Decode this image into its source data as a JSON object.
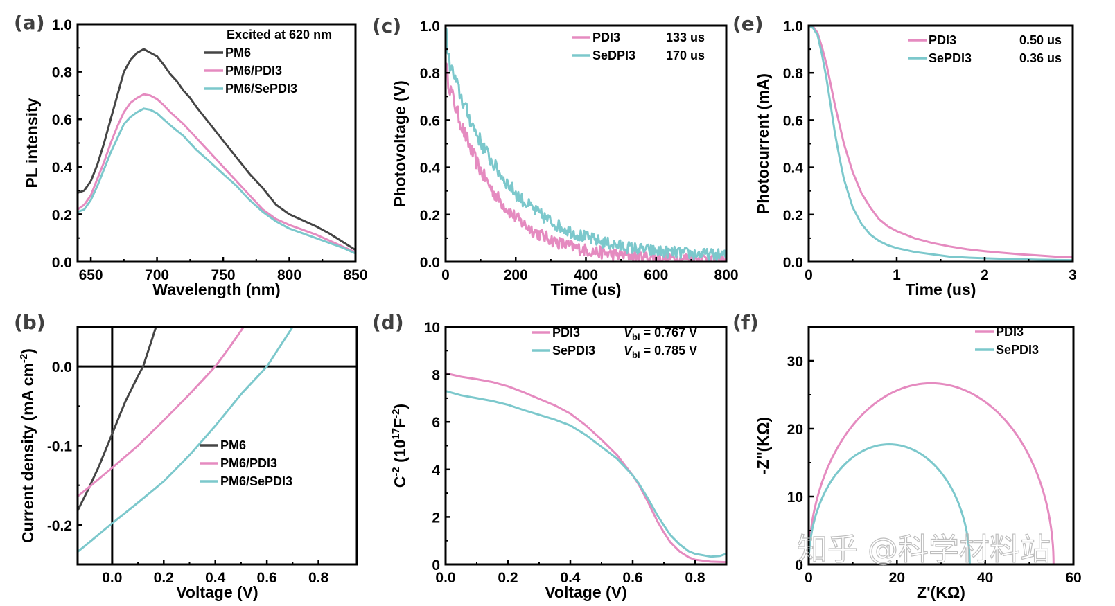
{
  "watermark": "知乎 @科学材料站",
  "colors": {
    "PM6": "#454545",
    "PDI3": "#E58BC0",
    "SePDI3": "#7CC8CC",
    "axis": "#000000"
  },
  "chart_data": [
    {
      "panel": "(a)",
      "type": "line",
      "title": "",
      "xlabel": "Wavelength (nm)",
      "ylabel": "PL intensity",
      "xlim": [
        640,
        850
      ],
      "ylim": [
        0.0,
        1.0
      ],
      "xticks": [
        650,
        700,
        750,
        800,
        850
      ],
      "yticks": [
        0.0,
        0.2,
        0.4,
        0.6,
        0.8,
        1.0
      ],
      "xtick_labels": [
        "650",
        "700",
        "750",
        "800",
        "850"
      ],
      "ytick_labels": [
        "0.0",
        "0.2",
        "0.4",
        "0.6",
        "0.8",
        "1.0"
      ],
      "legend_title": "Excited at 620 nm",
      "legend_position": "top-right",
      "series": [
        {
          "name": "PM6",
          "label": "PM6",
          "color_key": "PM6",
          "x": [
            640,
            645,
            650,
            655,
            660,
            665,
            670,
            675,
            680,
            685,
            690,
            695,
            700,
            705,
            710,
            715,
            720,
            725,
            730,
            740,
            750,
            760,
            770,
            780,
            790,
            800,
            810,
            820,
            830,
            840,
            850
          ],
          "y": [
            0.29,
            0.3,
            0.34,
            0.41,
            0.5,
            0.6,
            0.7,
            0.8,
            0.85,
            0.88,
            0.895,
            0.88,
            0.865,
            0.83,
            0.79,
            0.76,
            0.72,
            0.69,
            0.65,
            0.58,
            0.51,
            0.44,
            0.37,
            0.31,
            0.24,
            0.2,
            0.175,
            0.15,
            0.12,
            0.085,
            0.05
          ]
        },
        {
          "name": "PM6/PDI3",
          "label": "PM6/PDI3",
          "color_key": "PDI3",
          "x": [
            640,
            645,
            650,
            655,
            660,
            665,
            670,
            675,
            680,
            685,
            690,
            695,
            700,
            705,
            710,
            720,
            730,
            740,
            750,
            760,
            770,
            780,
            790,
            800,
            810,
            820,
            830,
            840,
            850
          ],
          "y": [
            0.22,
            0.24,
            0.28,
            0.35,
            0.42,
            0.5,
            0.57,
            0.63,
            0.67,
            0.69,
            0.705,
            0.7,
            0.685,
            0.66,
            0.63,
            0.58,
            0.52,
            0.46,
            0.4,
            0.34,
            0.28,
            0.22,
            0.18,
            0.155,
            0.135,
            0.115,
            0.09,
            0.065,
            0.04
          ]
        },
        {
          "name": "PM6/SePDI3",
          "label": "PM6/SePDI3",
          "color_key": "SePDI3",
          "x": [
            640,
            645,
            650,
            655,
            660,
            665,
            670,
            675,
            680,
            685,
            690,
            695,
            700,
            705,
            710,
            720,
            730,
            740,
            750,
            760,
            770,
            780,
            790,
            800,
            810,
            820,
            830,
            840,
            850
          ],
          "y": [
            0.21,
            0.22,
            0.26,
            0.32,
            0.39,
            0.46,
            0.52,
            0.58,
            0.61,
            0.63,
            0.645,
            0.64,
            0.625,
            0.6,
            0.575,
            0.53,
            0.47,
            0.42,
            0.37,
            0.32,
            0.26,
            0.21,
            0.17,
            0.14,
            0.12,
            0.1,
            0.08,
            0.06,
            0.035
          ]
        }
      ]
    },
    {
      "panel": "(b)",
      "type": "line",
      "title": "",
      "xlabel": "Voltage (V)",
      "ylabel": "Current density (mA cm-2)",
      "ylabel_main": "Current density (mA cm",
      "ylabel_sup": "-2",
      "ylabel_end": ")",
      "xlim": [
        -0.134,
        0.949
      ],
      "ylim": [
        -0.25,
        0.05
      ],
      "xticks": [
        0.0,
        0.2,
        0.4,
        0.6,
        0.8
      ],
      "yticks": [
        -0.2,
        -0.1,
        0.0
      ],
      "xtick_labels": [
        "0.0",
        "0.2",
        "0.4",
        "0.6",
        "0.8"
      ],
      "ytick_labels": [
        "-0.2",
        "-0.1",
        "0.0"
      ],
      "reference_lines": {
        "x": 0.0,
        "y": 0.0
      },
      "legend_position": "center-right",
      "series": [
        {
          "name": "PM6",
          "label": "PM6",
          "color_key": "PM6",
          "x": [
            -0.134,
            -0.1,
            -0.05,
            0.0,
            0.05,
            0.1,
            0.12,
            0.15,
            0.17
          ],
          "y": [
            -0.182,
            -0.16,
            -0.125,
            -0.085,
            -0.045,
            -0.012,
            0.0,
            0.03,
            0.05
          ]
        },
        {
          "name": "PM6/PDI3",
          "label": "PM6/PDI3",
          "color_key": "PDI3",
          "x": [
            -0.134,
            -0.1,
            0.0,
            0.1,
            0.2,
            0.3,
            0.4,
            0.45,
            0.51
          ],
          "y": [
            -0.164,
            -0.155,
            -0.128,
            -0.1,
            -0.068,
            -0.035,
            0.0,
            0.022,
            0.05
          ]
        },
        {
          "name": "PM6/SePDI3",
          "label": "PM6/SePDI3",
          "color_key": "SePDI3",
          "x": [
            -0.134,
            -0.1,
            0.0,
            0.1,
            0.2,
            0.3,
            0.4,
            0.5,
            0.6,
            0.65,
            0.7
          ],
          "y": [
            -0.234,
            -0.225,
            -0.198,
            -0.172,
            -0.145,
            -0.112,
            -0.075,
            -0.035,
            0.0,
            0.025,
            0.05
          ]
        }
      ]
    },
    {
      "panel": "(c)",
      "type": "line",
      "title": "",
      "xlabel": "Time (us)",
      "ylabel": "Photovoltage (V)",
      "xlim": [
        0,
        800
      ],
      "ylim": [
        0.0,
        1.0
      ],
      "xticks": [
        0,
        200,
        400,
        600,
        800
      ],
      "yticks": [
        0.0,
        0.2,
        0.4,
        0.6,
        0.8,
        1.0
      ],
      "xtick_labels": [
        "0",
        "200",
        "400",
        "600",
        "800"
      ],
      "ytick_labels": [
        "0.0",
        "0.2",
        "0.4",
        "0.6",
        "0.8",
        "1.0"
      ],
      "legend_position": "top-right",
      "noisy": true,
      "series": [
        {
          "name": "PDI3",
          "label": "PDI3",
          "annotation": "133 us",
          "color_key": "PDI3",
          "tau": 133,
          "amp": 0.8,
          "offset": 0.01
        },
        {
          "name": "SeDPI3",
          "label": "SeDPI3",
          "annotation": "170 us",
          "color_key": "SePDI3",
          "tau": 170,
          "amp": 0.88,
          "offset": 0.02
        }
      ]
    },
    {
      "panel": "(d)",
      "type": "line",
      "title": "",
      "xlabel": "Voltage (V)",
      "ylabel": "C-2 (10^17 F-2)",
      "ylabel_parts": [
        "C",
        "-2",
        " (10",
        "17",
        "F",
        "-2",
        ")"
      ],
      "xlim": [
        0.0,
        0.9
      ],
      "ylim": [
        0,
        10
      ],
      "xticks": [
        0.0,
        0.2,
        0.4,
        0.6,
        0.8
      ],
      "yticks": [
        0,
        2,
        4,
        6,
        8,
        10
      ],
      "xtick_labels": [
        "0.0",
        "0.2",
        "0.4",
        "0.6",
        "0.8"
      ],
      "ytick_labels": [
        "0",
        "2",
        "4",
        "6",
        "8",
        "10"
      ],
      "legend_position": "top-right",
      "series": [
        {
          "name": "PDI3",
          "label": "PDI3",
          "vbi_label": "V",
          "vbi_sub": "bi",
          "vbi_value": " = 0.767 V",
          "color_key": "PDI3",
          "x": [
            0.0,
            0.05,
            0.1,
            0.15,
            0.2,
            0.25,
            0.3,
            0.35,
            0.4,
            0.45,
            0.5,
            0.55,
            0.6,
            0.62,
            0.65,
            0.68,
            0.7,
            0.72,
            0.75,
            0.78,
            0.8,
            0.85,
            0.9
          ],
          "y": [
            8.05,
            7.9,
            7.8,
            7.68,
            7.5,
            7.25,
            6.97,
            6.7,
            6.35,
            5.85,
            5.25,
            4.6,
            3.75,
            3.35,
            2.6,
            1.8,
            1.35,
            0.95,
            0.55,
            0.3,
            0.2,
            0.12,
            0.1
          ]
        },
        {
          "name": "SePDI3",
          "label": "SePDI3",
          "vbi_label": "V",
          "vbi_sub": "bi",
          "vbi_value": " = 0.785 V",
          "color_key": "SePDI3",
          "x": [
            0.0,
            0.05,
            0.1,
            0.15,
            0.2,
            0.25,
            0.3,
            0.35,
            0.4,
            0.45,
            0.5,
            0.55,
            0.6,
            0.62,
            0.65,
            0.68,
            0.7,
            0.72,
            0.75,
            0.78,
            0.8,
            0.85,
            0.88,
            0.9
          ],
          "y": [
            7.3,
            7.12,
            7.0,
            6.88,
            6.72,
            6.5,
            6.3,
            6.1,
            5.85,
            5.45,
            4.95,
            4.45,
            3.75,
            3.4,
            2.75,
            2.05,
            1.65,
            1.25,
            0.85,
            0.55,
            0.45,
            0.33,
            0.36,
            0.45
          ]
        }
      ]
    },
    {
      "panel": "(e)",
      "type": "line",
      "title": "",
      "xlabel": "Time (us)",
      "ylabel": "Photocurrent (mA)",
      "xlim": [
        0,
        3
      ],
      "ylim": [
        0.0,
        1.0
      ],
      "xticks": [
        0,
        1,
        2,
        3
      ],
      "yticks": [
        0.0,
        0.2,
        0.4,
        0.6,
        0.8,
        1.0
      ],
      "xtick_labels": [
        "0",
        "1",
        "2",
        "3"
      ],
      "ytick_labels": [
        "0.0",
        "0.2",
        "0.4",
        "0.6",
        "0.8",
        "1.0"
      ],
      "legend_position": "top-right",
      "series": [
        {
          "name": "PDI3",
          "label": "PDI3",
          "annotation": "0.50 us",
          "color_key": "PDI3",
          "x": [
            0,
            0.05,
            0.1,
            0.15,
            0.2,
            0.25,
            0.3,
            0.35,
            0.4,
            0.5,
            0.6,
            0.7,
            0.8,
            0.9,
            1.0,
            1.2,
            1.4,
            1.6,
            1.8,
            2.0,
            2.2,
            2.4,
            2.6,
            2.8,
            3.0
          ],
          "y": [
            1.0,
            0.995,
            0.97,
            0.91,
            0.84,
            0.75,
            0.66,
            0.58,
            0.5,
            0.38,
            0.29,
            0.23,
            0.18,
            0.15,
            0.13,
            0.1,
            0.08,
            0.065,
            0.053,
            0.045,
            0.038,
            0.032,
            0.027,
            0.022,
            0.02
          ]
        },
        {
          "name": "SePDI3",
          "label": "SePDI3",
          "annotation": "0.36 us",
          "color_key": "SePDI3",
          "x": [
            0,
            0.05,
            0.1,
            0.15,
            0.2,
            0.25,
            0.3,
            0.35,
            0.4,
            0.5,
            0.6,
            0.7,
            0.8,
            0.9,
            1.0,
            1.2,
            1.4,
            1.6,
            1.8,
            2.0,
            2.2,
            2.4,
            2.6,
            2.8,
            3.0
          ],
          "y": [
            1.0,
            0.99,
            0.96,
            0.88,
            0.78,
            0.66,
            0.54,
            0.44,
            0.35,
            0.23,
            0.16,
            0.115,
            0.088,
            0.07,
            0.058,
            0.042,
            0.032,
            0.022,
            0.018,
            0.015,
            0.013,
            0.011,
            0.009,
            0.008,
            0.007
          ]
        }
      ]
    },
    {
      "panel": "(f)",
      "type": "line",
      "title": "",
      "xlabel": "Z'(KΩ)",
      "ylabel": "-Z''(KΩ)",
      "xlim": [
        0,
        60
      ],
      "ylim": [
        0,
        35
      ],
      "xticks": [
        0,
        20,
        40,
        60
      ],
      "yticks": [
        0,
        10,
        20,
        30
      ],
      "xtick_labels": [
        "0",
        "20",
        "40",
        "60"
      ],
      "ytick_labels": [
        "0",
        "10",
        "20",
        "30"
      ],
      "legend_position": "top-right",
      "series": [
        {
          "name": "PDI3",
          "label": "PDI3",
          "color_key": "PDI3",
          "semicircle": {
            "z_start": 0.0,
            "z_end": 55.5,
            "peak": 26.7
          }
        },
        {
          "name": "SePDI3",
          "label": "SePDI3",
          "color_key": "SePDI3",
          "semicircle": {
            "z_start": 0.0,
            "z_end": 36.5,
            "peak": 17.7
          }
        }
      ]
    }
  ]
}
